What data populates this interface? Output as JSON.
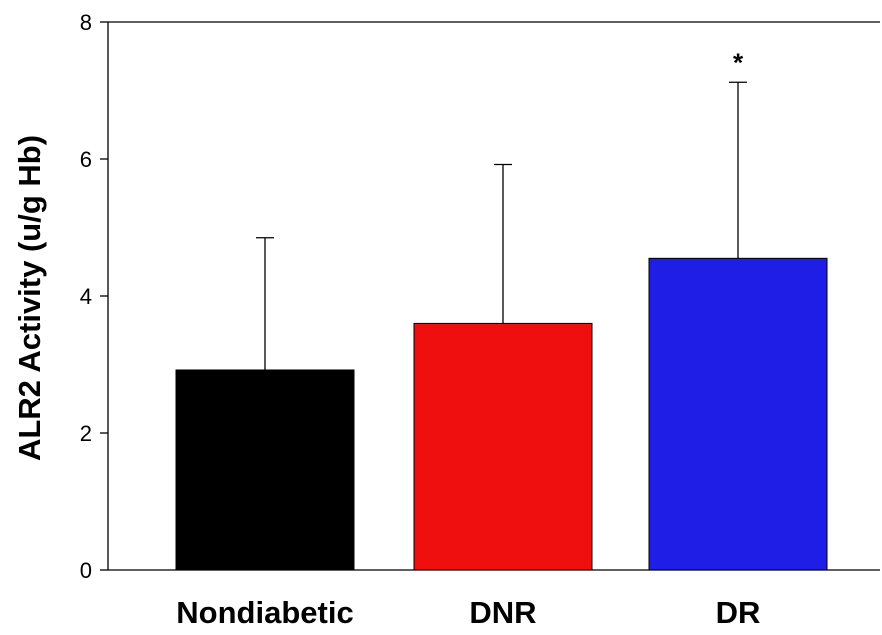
{
  "chart_data": {
    "type": "bar",
    "ylabel": "ALR2 Activity (u/g Hb)",
    "xlabel": "",
    "ylim": [
      0,
      8
    ],
    "yticks": [
      0,
      2,
      4,
      6,
      8
    ],
    "ytick_labels": [
      "0",
      "2",
      "4",
      "6",
      "8"
    ],
    "categories": [
      "Nondiabetic",
      "DNR",
      "DR"
    ],
    "values": [
      2.92,
      3.6,
      4.55
    ],
    "error_upper": [
      4.85,
      5.92,
      7.12
    ],
    "colors": [
      "#000000",
      "#f00f0f",
      "#1e1ee6"
    ],
    "annotations": [
      {
        "category": "DR",
        "text": "*"
      }
    ],
    "grid": false,
    "legend": "none"
  }
}
